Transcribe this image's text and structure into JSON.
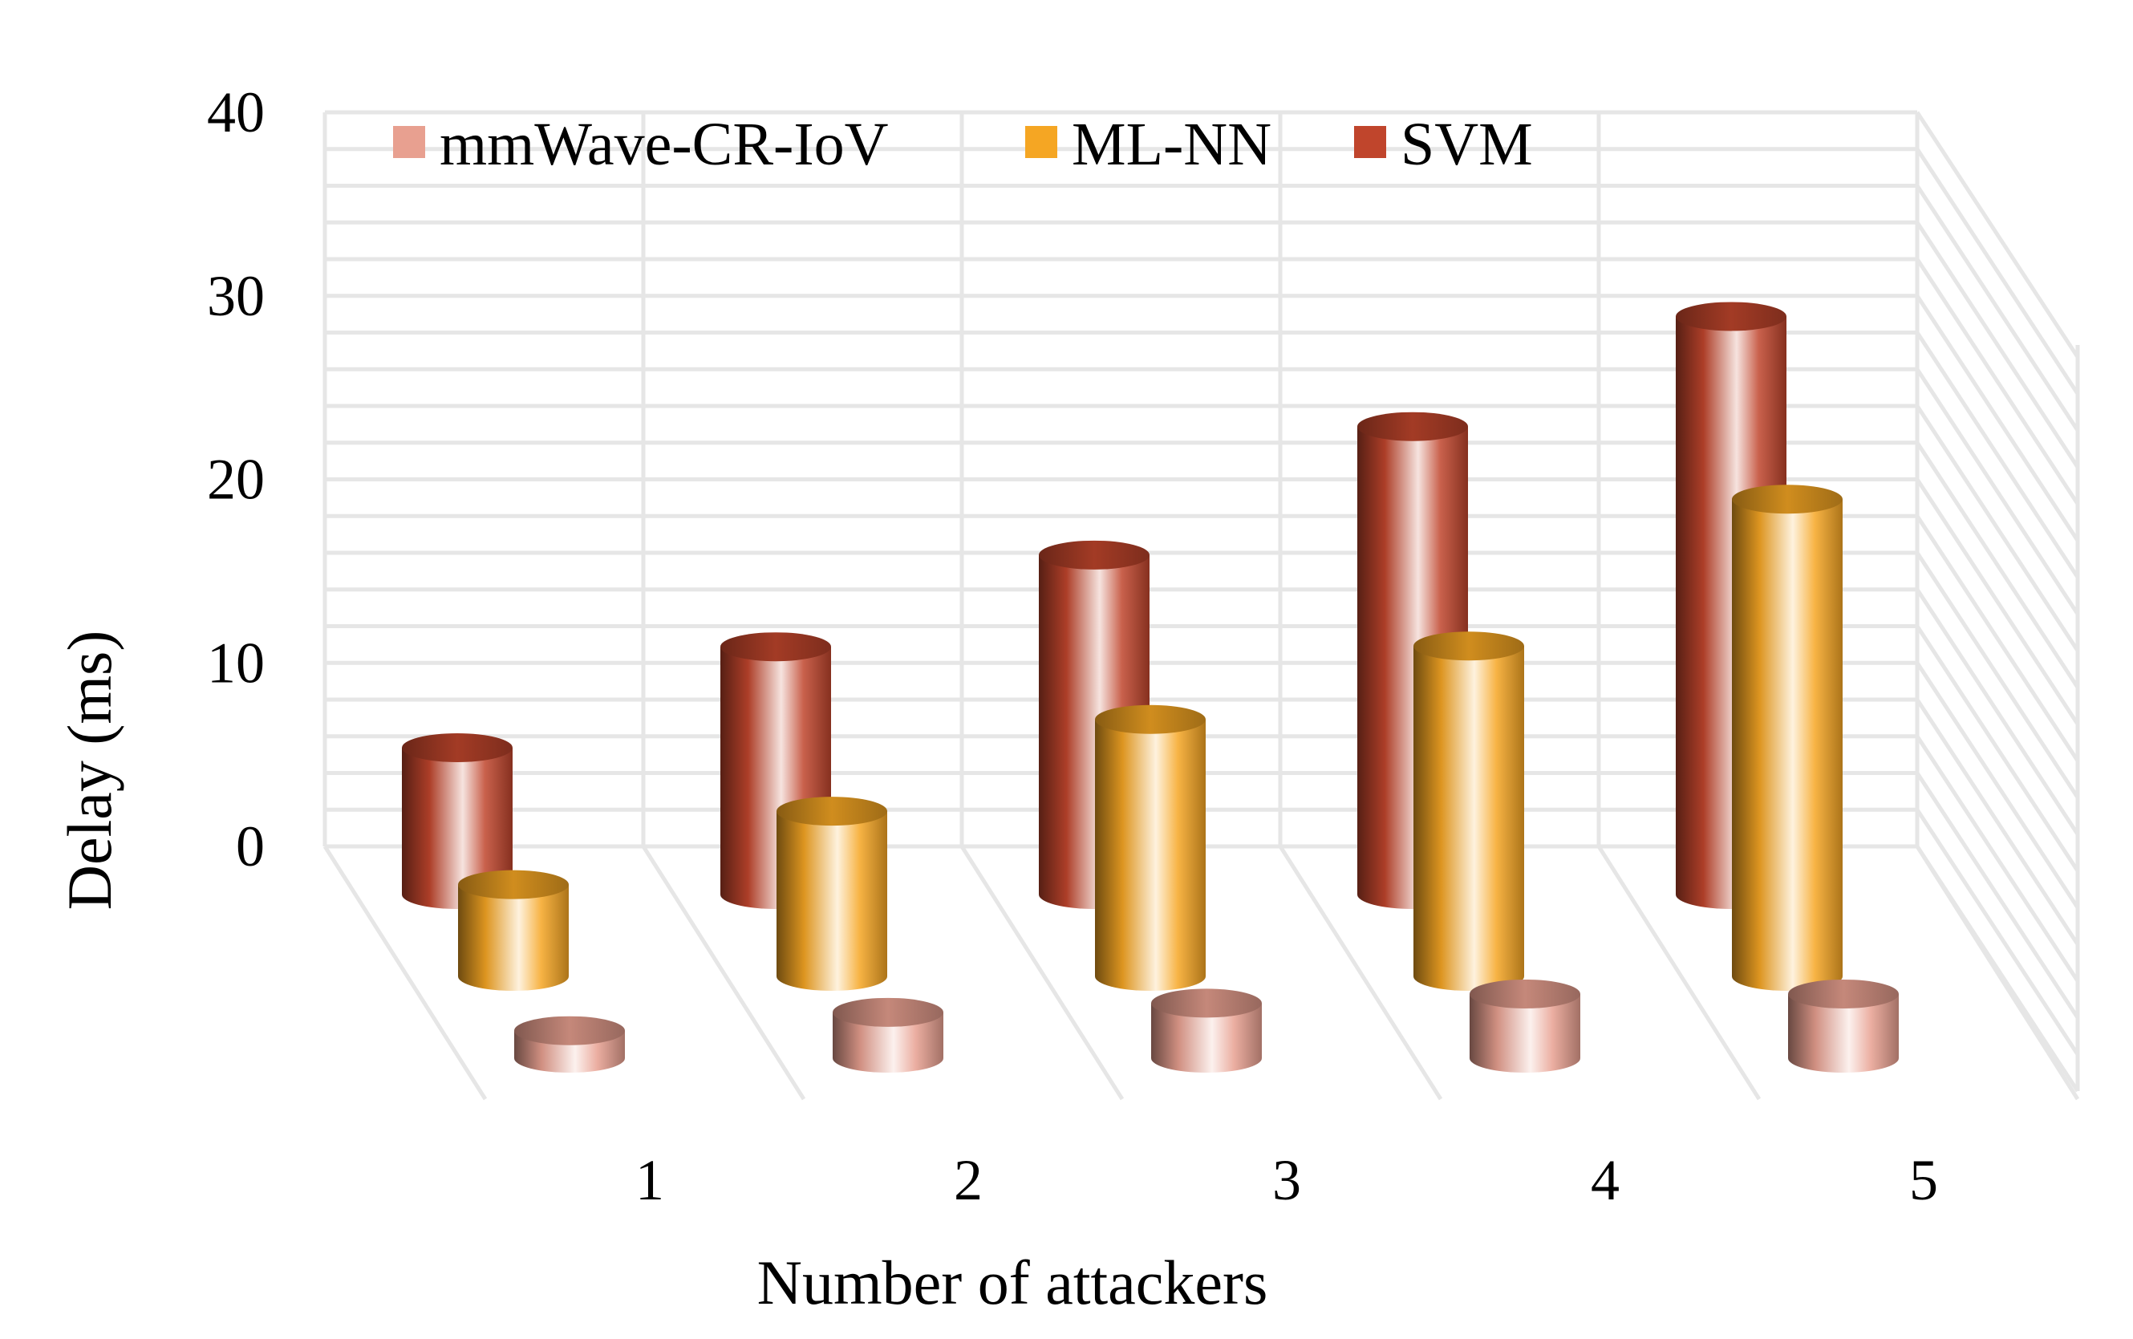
{
  "chart_data": {
    "type": "bar",
    "style": "3d-cylinder",
    "title": "",
    "xlabel": "Number of attackers",
    "ylabel": "Delay (ms)",
    "categories": [
      "1",
      "2",
      "3",
      "4",
      "5"
    ],
    "yticks": [
      "0",
      "10",
      "20",
      "30",
      "40"
    ],
    "ylim": [
      0,
      40
    ],
    "grid": true,
    "legend": "top-left",
    "series": [
      {
        "name": "mmWave-CR-IoV",
        "values": [
          1.5,
          2.5,
          3,
          3.5,
          3.5
        ],
        "color": "#E8A090"
      },
      {
        "name": "ML-NN",
        "values": [
          5,
          9,
          14,
          18,
          26
        ],
        "color": "#F5A623"
      },
      {
        "name": "SVM",
        "values": [
          8,
          13.5,
          18.5,
          25.5,
          31.5
        ],
        "color": "#C0452C"
      }
    ]
  }
}
